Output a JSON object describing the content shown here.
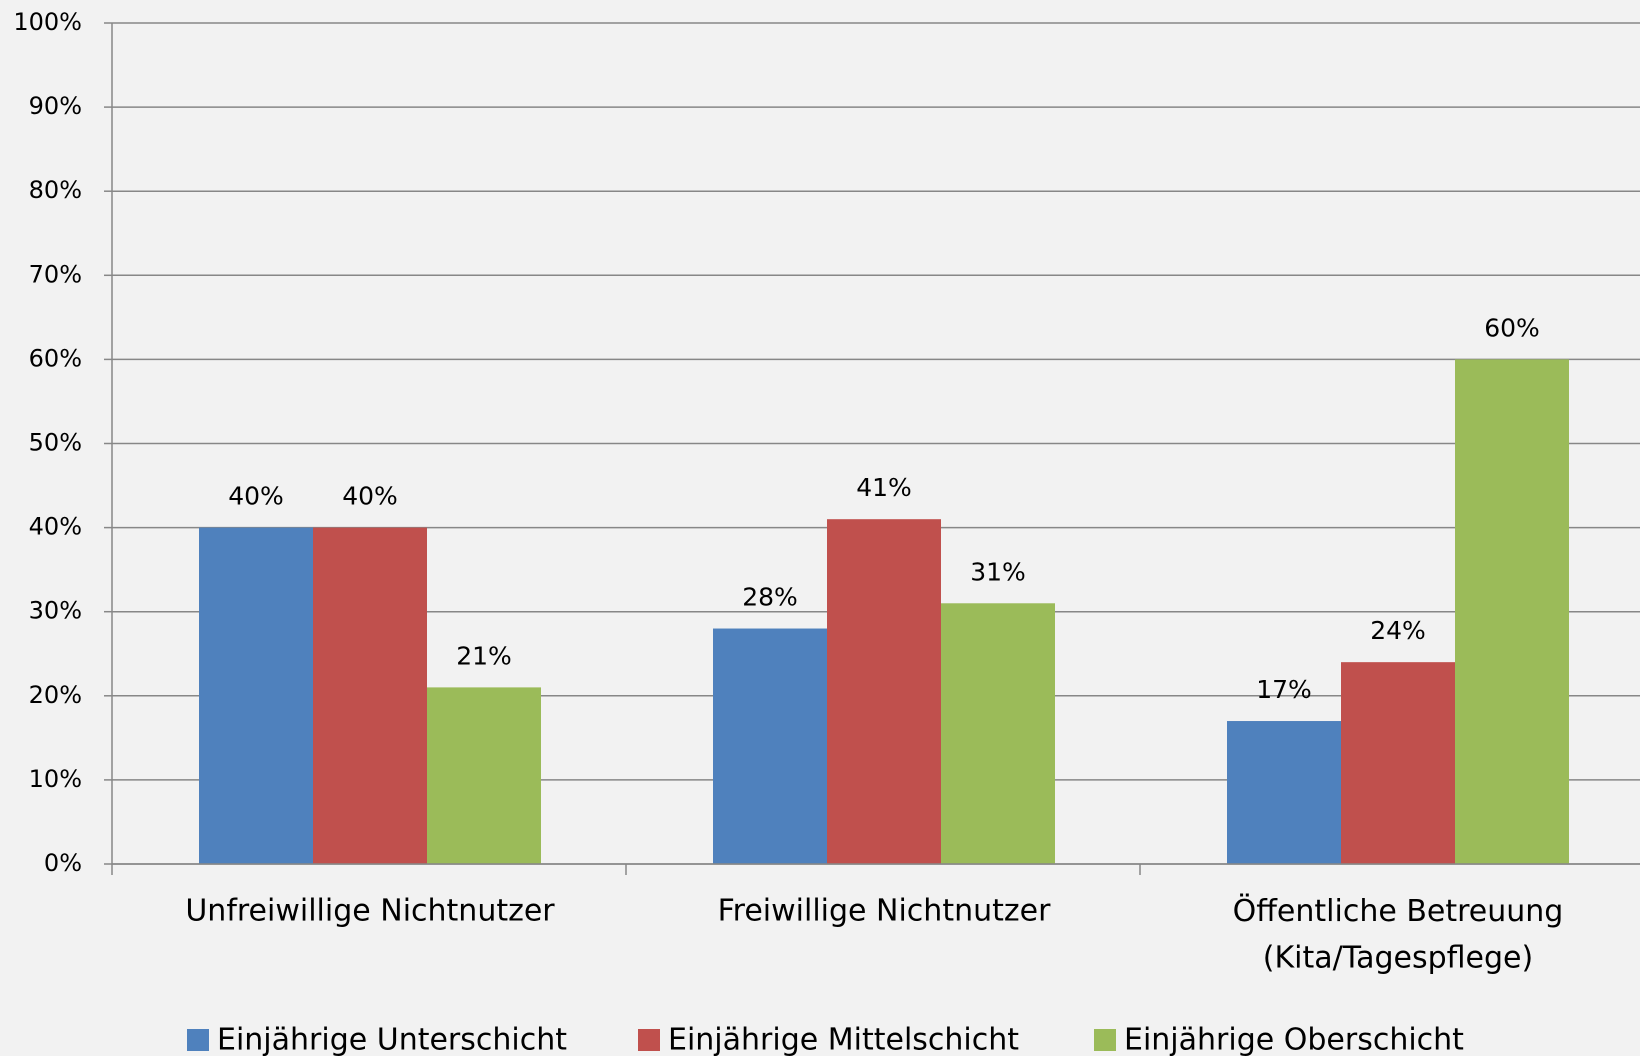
{
  "chart_data": {
    "type": "bar",
    "categories": [
      "Unfreiwillige Nichtnutzer",
      "Freiwillige Nichtnutzer",
      "Öffentliche Betreuung\n(Kita/Tagespflege)"
    ],
    "series": [
      {
        "name": "Einjährige Unterschicht",
        "color": "#4f81bd",
        "values": [
          40,
          28,
          17
        ],
        "value_labels": [
          "40%",
          "28%",
          "17%"
        ]
      },
      {
        "name": "Einjährige Mittelschicht",
        "color": "#c0504d",
        "values": [
          40,
          41,
          24
        ],
        "value_labels": [
          "40%",
          "41%",
          "24%"
        ]
      },
      {
        "name": "Einjährige Oberschicht",
        "color": "#9bbb59",
        "values": [
          21,
          31,
          60
        ],
        "value_labels": [
          "21%",
          "31%",
          "60%"
        ]
      }
    ],
    "ylim": [
      0,
      100
    ],
    "yticks": [
      {
        "value": 0,
        "label": "0%"
      },
      {
        "value": 10,
        "label": "10%"
      },
      {
        "value": 20,
        "label": "20%"
      },
      {
        "value": 30,
        "label": "30%"
      },
      {
        "value": 40,
        "label": "40%"
      },
      {
        "value": 50,
        "label": "50%"
      },
      {
        "value": 60,
        "label": "60%"
      },
      {
        "value": 70,
        "label": "70%"
      },
      {
        "value": 80,
        "label": "80%"
      },
      {
        "value": 90,
        "label": "90%"
      },
      {
        "value": 100,
        "label": "100%"
      }
    ],
    "grid": true,
    "legend": "bottom"
  }
}
